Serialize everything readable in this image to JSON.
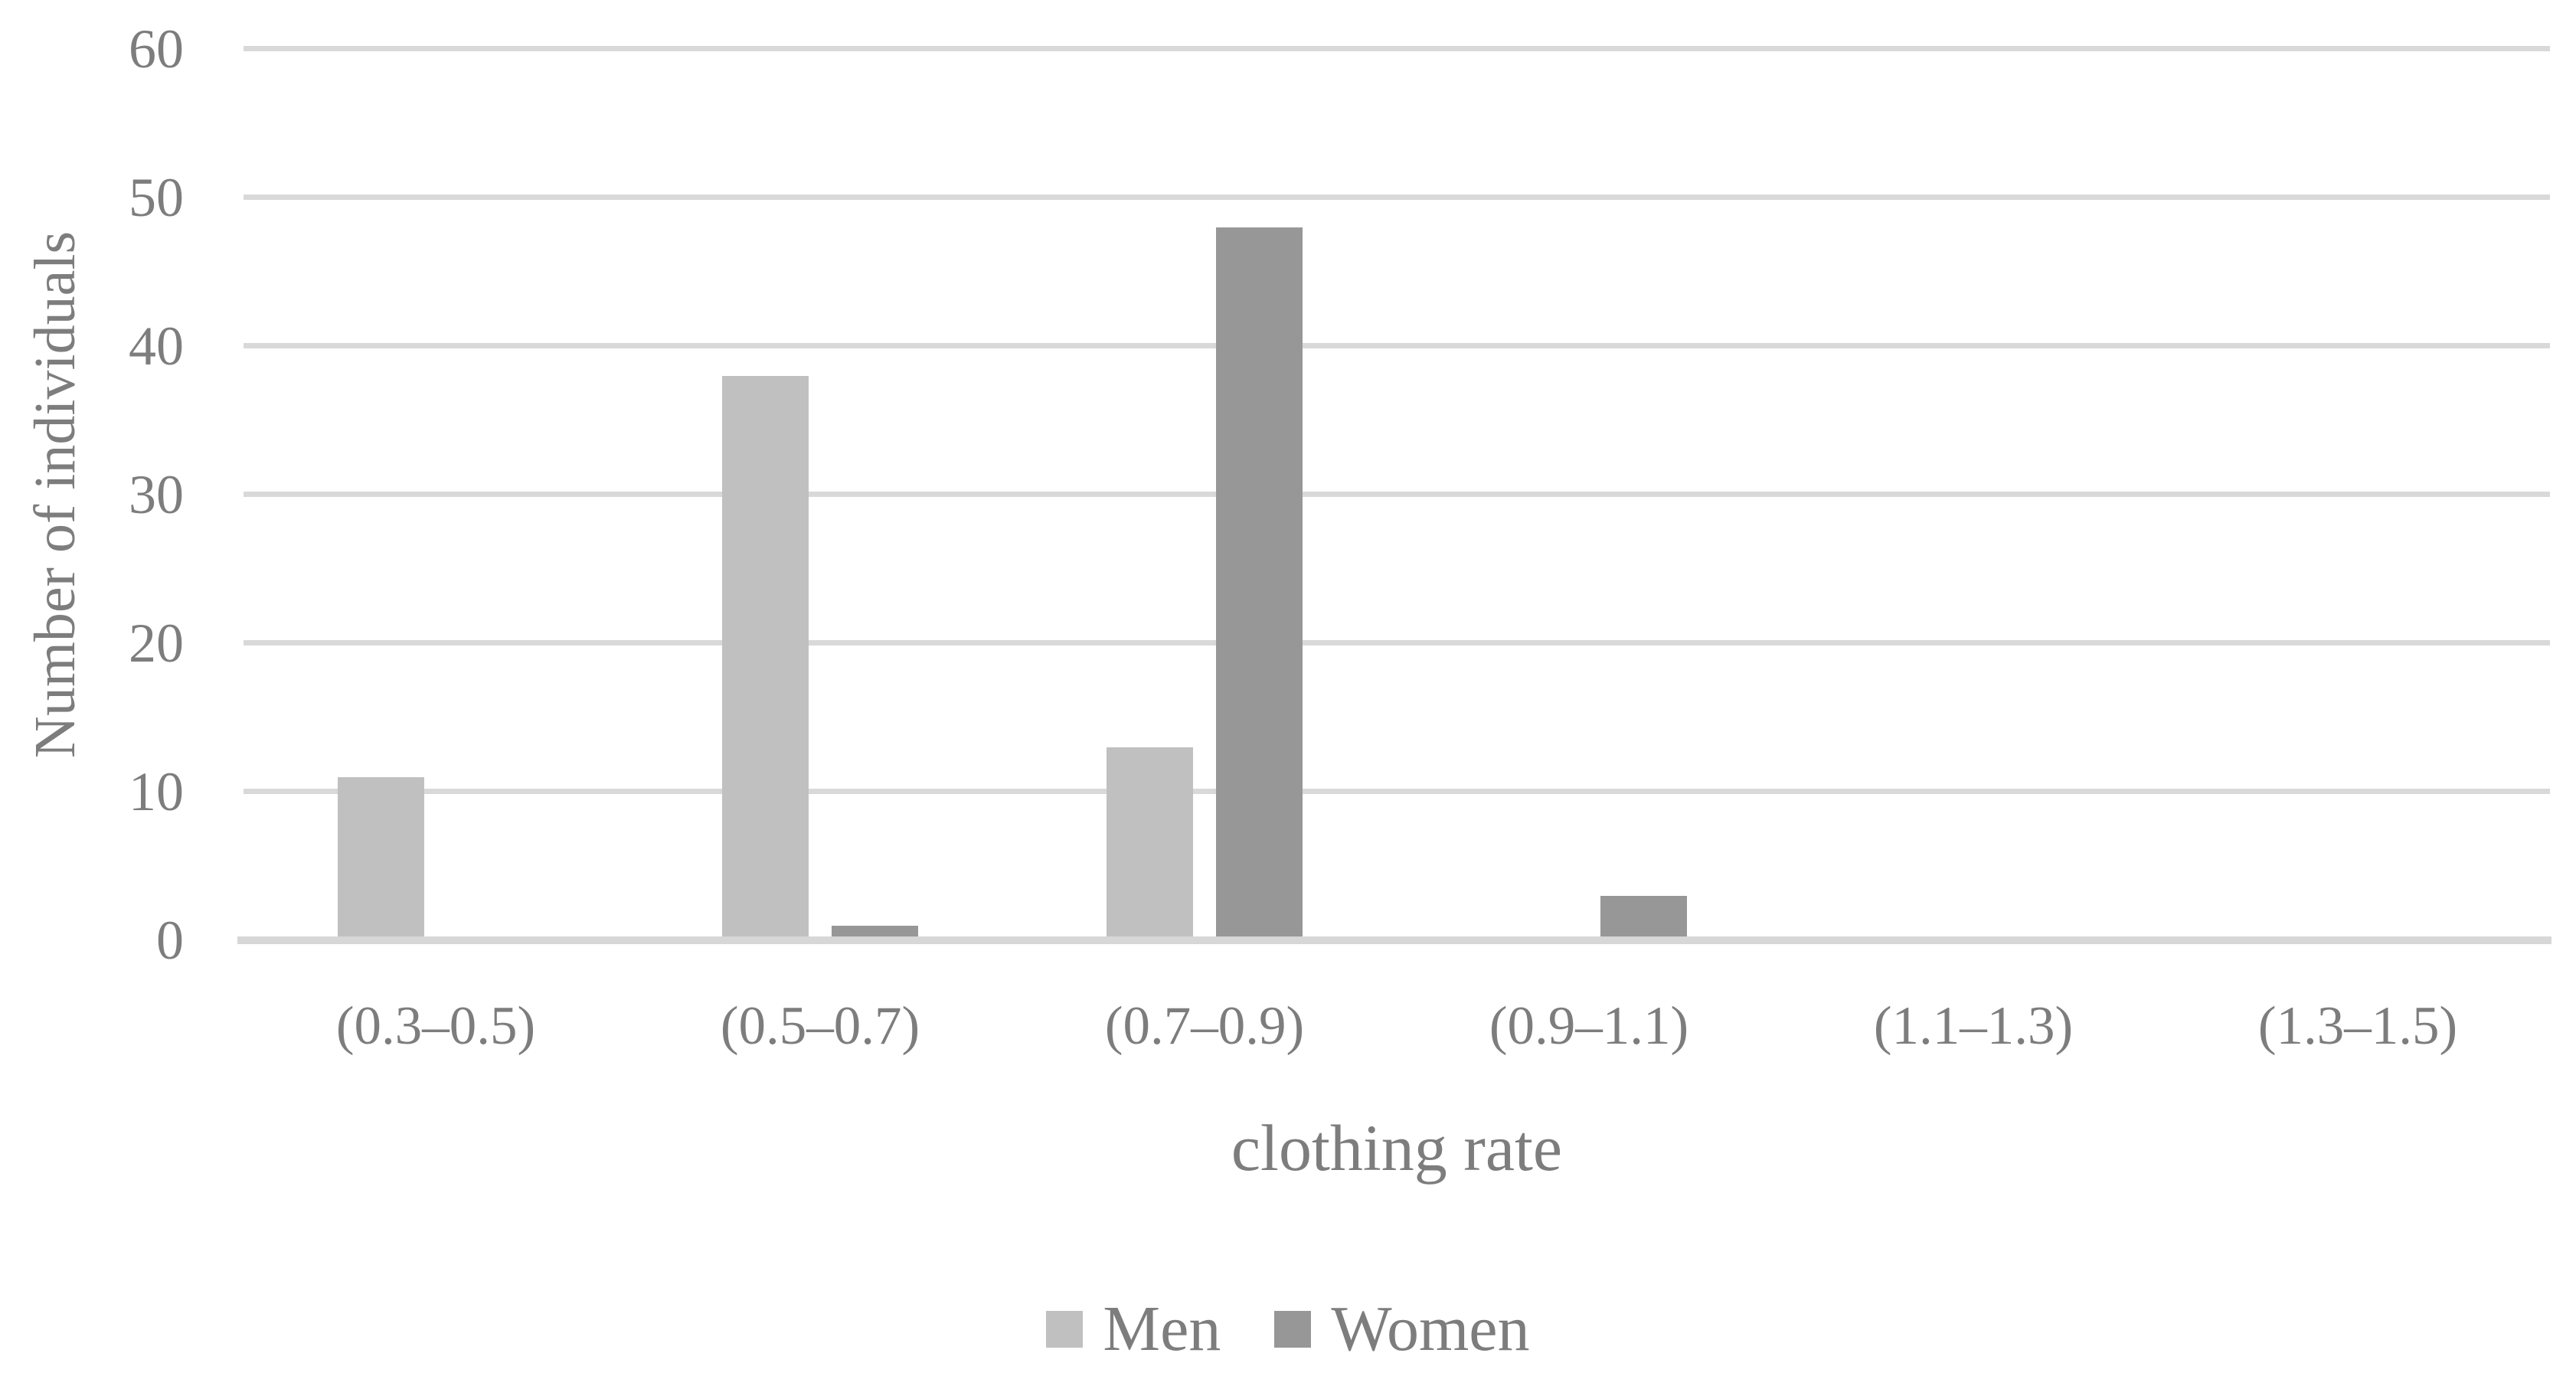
{
  "figure": {
    "background_color": "#ffffff",
    "text_color": "#7d7d7d"
  },
  "chart_data": {
    "type": "bar",
    "title": "",
    "xlabel": "clothing rate",
    "ylabel": "Number of individuals",
    "categories": [
      "(0.3–0.5)",
      "(0.5–0.7)",
      "(0.7–0.9)",
      "(0.9–1.1)",
      "(1.1–1.3)",
      "(1.3–1.5)"
    ],
    "series": [
      {
        "name": "Men",
        "color": "#c0c0c0",
        "values": [
          11,
          38,
          13,
          0,
          0,
          0
        ]
      },
      {
        "name": "Women",
        "color": "#979797",
        "values": [
          0,
          1,
          48,
          3,
          0,
          0
        ]
      }
    ],
    "ylim": [
      0,
      60
    ],
    "yticks": [
      0,
      10,
      20,
      30,
      40,
      50,
      60
    ],
    "grid": "horizontal",
    "gridline_color": "#d9d9d9",
    "axis_line_color": "#d7d7d7",
    "legend_position": "bottom-center"
  }
}
